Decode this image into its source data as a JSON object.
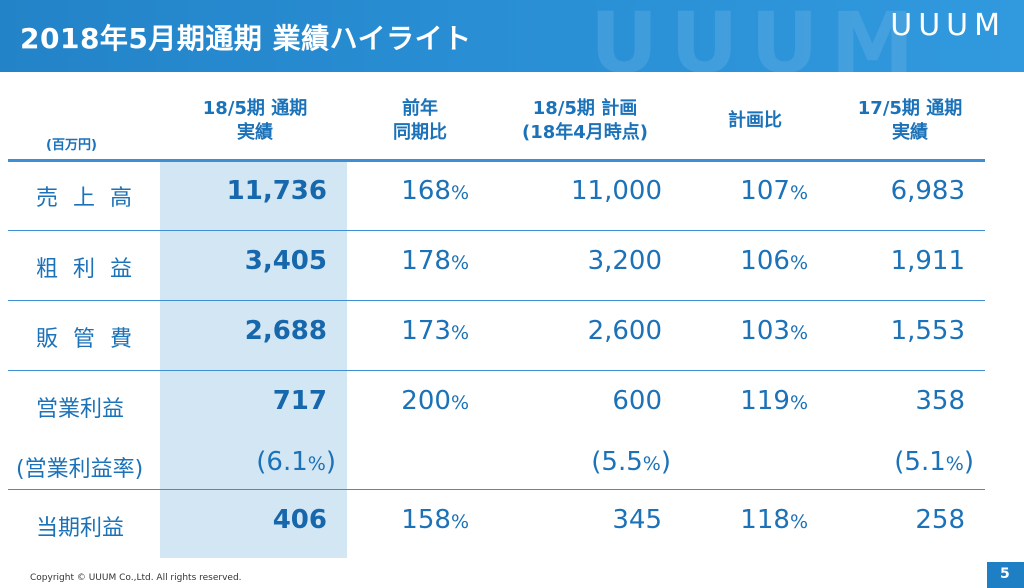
{
  "header": {
    "title": "2018年5月期通期 業績ハイライト",
    "watermark": "UUUM",
    "logo": "UUUM"
  },
  "table": {
    "unit_label": "(百万円)",
    "columns": [
      {
        "line1": "18/5期 通期",
        "line2": "実績"
      },
      {
        "line1": "前年",
        "line2": "同期比"
      },
      {
        "line1": "18/5期 計画",
        "line2": "(18年4月時点)"
      },
      {
        "line1": "計画比",
        "line2": ""
      },
      {
        "line1": "17/5期 通期",
        "line2": "実績"
      }
    ],
    "rows": [
      {
        "label": "売上高",
        "actual": "11,736",
        "yoy": "168",
        "plan": "11,000",
        "vs_plan": "107",
        "prev": "6,983"
      },
      {
        "label": "粗利益",
        "actual": "3,405",
        "yoy": "178",
        "plan": "3,200",
        "vs_plan": "106",
        "prev": "1,911"
      },
      {
        "label": "販管費",
        "actual": "2,688",
        "yoy": "173",
        "plan": "2,600",
        "vs_plan": "103",
        "prev": "1,553"
      },
      {
        "label": "営業利益",
        "actual": "717",
        "yoy": "200",
        "plan": "600",
        "vs_plan": "119",
        "prev": "358"
      },
      {
        "label": "(営業利益率)",
        "actual": "6.1",
        "plan": "5.5",
        "prev": "5.1"
      },
      {
        "label": "当期利益",
        "actual": "406",
        "yoy": "158",
        "plan": "345",
        "vs_plan": "118",
        "prev": "258"
      }
    ],
    "percent_sign": "%",
    "paren_open": "(",
    "paren_close": ")"
  },
  "footer": {
    "copyright": "Copyright © UUUM Co.,Ltd. All rights reserved.",
    "page_number": "5"
  },
  "colors": {
    "header_bg": "#2a90d6",
    "text_blue": "#1b72b8",
    "highlight": "#d3e6f3",
    "rule": "#3d8ed2"
  }
}
